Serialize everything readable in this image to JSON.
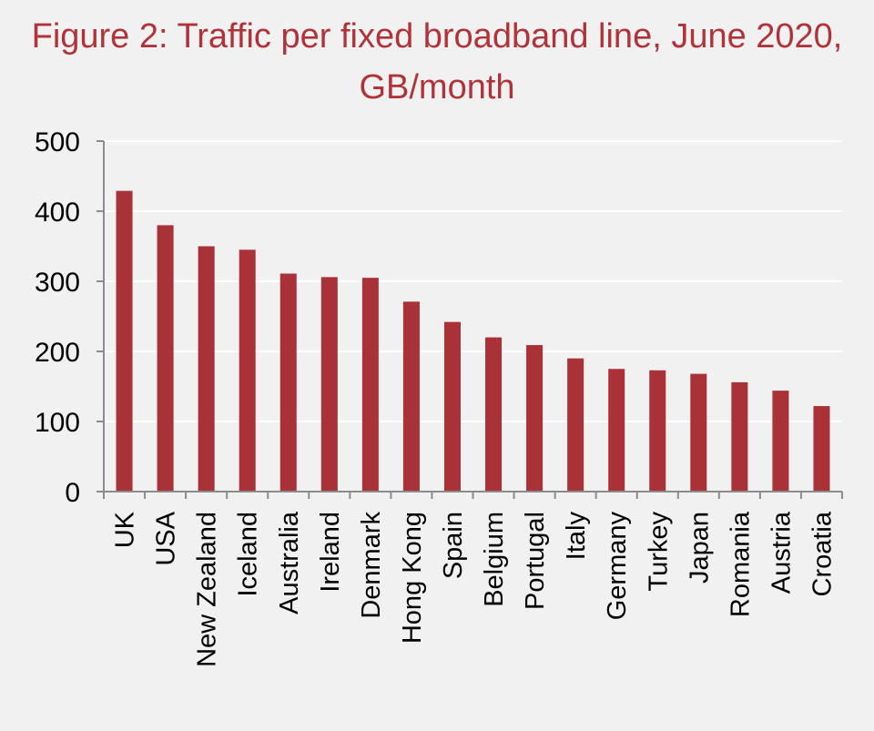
{
  "chart_data": {
    "type": "bar",
    "title": "Figure 2: Traffic per fixed broadband line, June 2020, GB/month",
    "xlabel": "",
    "ylabel": "",
    "categories": [
      "UK",
      "USA",
      "New Zealand",
      "Iceland",
      "Australia",
      "Ireland",
      "Denmark",
      "Hong Kong",
      "Spain",
      "Belgium",
      "Portugal",
      "Italy",
      "Germany",
      "Turkey",
      "Japan",
      "Romania",
      "Austria",
      "Croatia"
    ],
    "values": [
      429,
      380,
      350,
      345,
      311,
      306,
      305,
      271,
      242,
      220,
      209,
      190,
      175,
      173,
      168,
      156,
      144,
      122
    ],
    "ylim": [
      0,
      500
    ],
    "yticks": [
      0,
      100,
      200,
      300,
      400,
      500
    ],
    "grid": true,
    "legend": "none",
    "colors": {
      "bar": "#a83237",
      "title": "#b0333a",
      "grid": "#ffffff",
      "axis": "#8c8c8c",
      "background": "#f1f1f1"
    }
  }
}
